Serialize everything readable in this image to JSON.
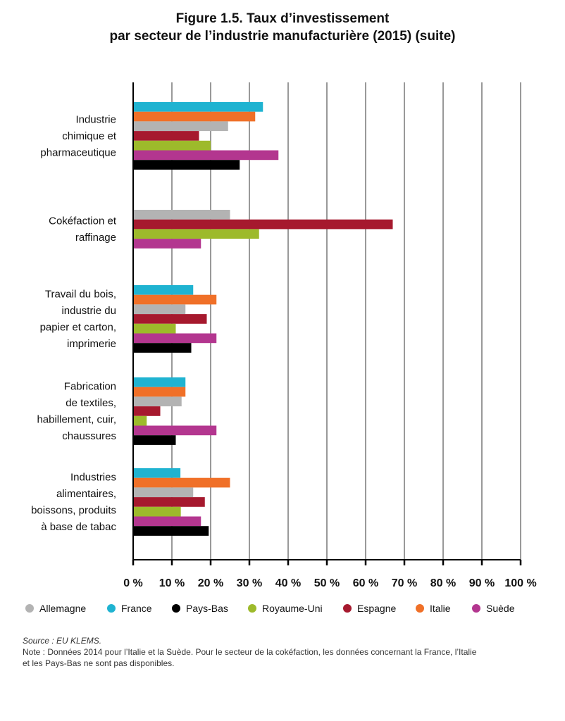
{
  "title_lines": [
    "Figure 1.5. Taux d’investissement",
    "par secteur de l’industrie manufacturière (2015) (suite)"
  ],
  "source": "Source : EU KLEMS.",
  "note_lines": [
    "Note : Données 2014 pour l’Italie et la Suède. Pour le secteur de la cokéfaction, les données concernant la France, l’Italie",
    "et les Pays-Bas ne sont pas disponibles."
  ],
  "chart_data": {
    "type": "bar",
    "orientation": "horizontal",
    "title": "Figure 1.5. Taux d’investissement par secteur de l’industrie manufacturière (2015) (suite)",
    "xlim": [
      0,
      100
    ],
    "x_ticks": [
      0,
      10,
      20,
      30,
      40,
      50,
      60,
      70,
      80,
      90,
      100
    ],
    "x_tick_labels": [
      "0 %",
      "10 %",
      "20 %",
      "30 %",
      "40 %",
      "50 %",
      "60 %",
      "70 %",
      "80 %",
      "90 %",
      "100 %"
    ],
    "grid": true,
    "legend_position": "bottom",
    "categories": [
      {
        "lines": [
          "Industrie",
          "chimique et",
          "pharmaceutique"
        ]
      },
      {
        "lines": [
          "Cokéfaction et",
          "raffinage"
        ]
      },
      {
        "lines": [
          "Travail du bois,",
          "industrie du",
          "papier et carton,",
          "imprimerie"
        ]
      },
      {
        "lines": [
          "Fabrication",
          "de textiles,",
          "habillement, cuir,",
          "chaussures"
        ]
      },
      {
        "lines": [
          "Industries",
          "alimentaires,",
          "boissons, produits",
          "à base de tabac"
        ]
      }
    ],
    "bar_order": [
      "France",
      "Italie",
      "Allemagne",
      "Espagne",
      "Royaume-Uni",
      "Suède",
      "Pays-Bas"
    ],
    "series": [
      {
        "name": "France",
        "color": "#1fb3d1",
        "values": [
          33.5,
          null,
          15.5,
          13.5,
          12.2
        ]
      },
      {
        "name": "Italie",
        "color": "#f07028",
        "values": [
          31.5,
          null,
          21.5,
          13.5,
          25.0
        ]
      },
      {
        "name": "Allemagne",
        "color": "#b3b3b3",
        "values": [
          24.5,
          25.0,
          13.5,
          12.5,
          15.5
        ]
      },
      {
        "name": "Espagne",
        "color": "#a6192e",
        "values": [
          17.0,
          67.0,
          19.0,
          7.0,
          18.5
        ]
      },
      {
        "name": "Royaume-Uni",
        "color": "#9dba2b",
        "values": [
          20.0,
          32.5,
          11.0,
          3.5,
          12.3
        ]
      },
      {
        "name": "Suède",
        "color": "#b3368f",
        "values": [
          37.5,
          17.5,
          21.5,
          21.5,
          17.5
        ]
      },
      {
        "name": "Pays-Bas",
        "color": "#000000",
        "values": [
          27.5,
          null,
          15.0,
          11.0,
          19.5
        ]
      }
    ],
    "legend": [
      "Allemagne",
      "France",
      "Pays-Bas",
      "Royaume-Uni",
      "Espagne",
      "Italie",
      "Suède"
    ]
  }
}
